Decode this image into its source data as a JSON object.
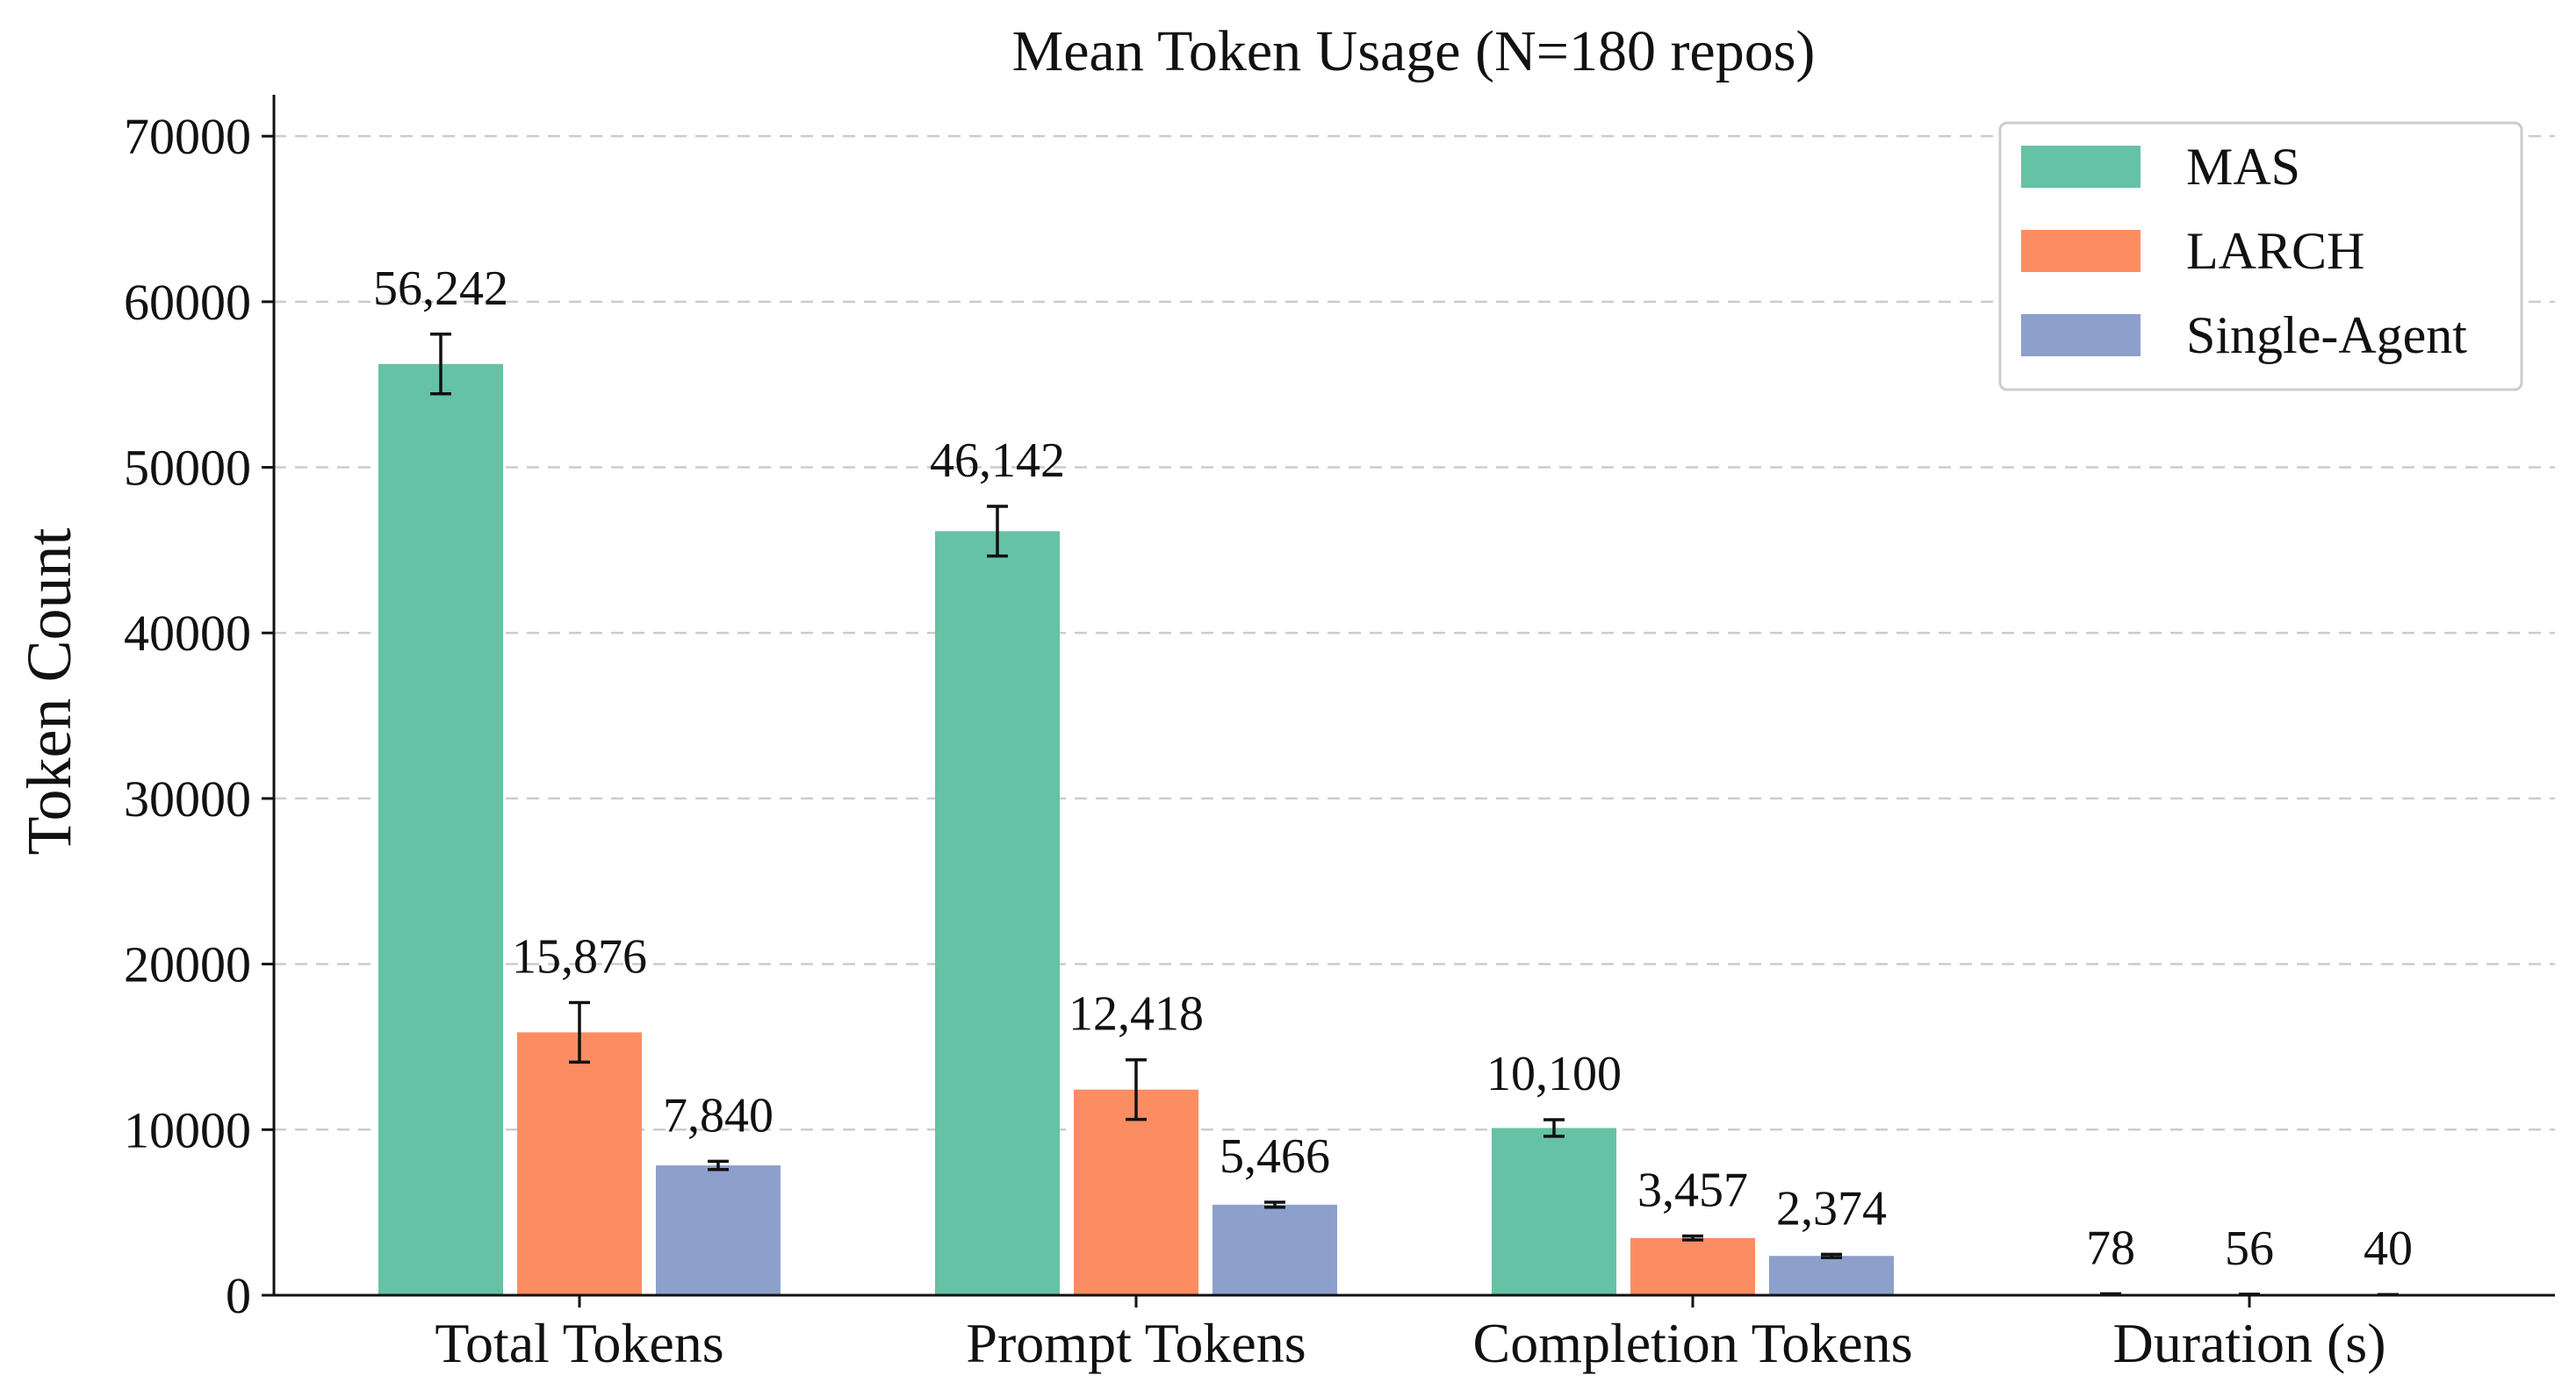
{
  "chart_data": {
    "type": "bar",
    "title": "Mean Token Usage (N=180 repos)",
    "xlabel": "",
    "ylabel": "Token Count",
    "categories": [
      "Total Tokens",
      "Prompt Tokens",
      "Completion Tokens",
      "Duration (s)"
    ],
    "ylim": [
      0,
      72500
    ],
    "yticks": [
      0,
      10000,
      20000,
      30000,
      40000,
      50000,
      60000,
      70000
    ],
    "grid": "y-dashed",
    "legend_position": "top-right",
    "series": [
      {
        "name": "MAS",
        "color": "#66c2a5",
        "values": [
          56242,
          46142,
          10100,
          78
        ],
        "labels": [
          "56,242",
          "46,142",
          "10,100",
          "78"
        ],
        "err": [
          1800,
          1500,
          500,
          5
        ]
      },
      {
        "name": "LARCH",
        "color": "#fc8d62",
        "values": [
          15876,
          12418,
          3457,
          56
        ],
        "labels": [
          "15,876",
          "12,418",
          "3,457",
          "56"
        ],
        "err": [
          1800,
          1800,
          120,
          4
        ]
      },
      {
        "name": "Single-Agent",
        "color": "#8da0cb",
        "values": [
          7840,
          5466,
          2374,
          40
        ],
        "labels": [
          "7,840",
          "5,466",
          "2,374",
          "40"
        ],
        "err": [
          250,
          150,
          100,
          3
        ]
      }
    ]
  }
}
